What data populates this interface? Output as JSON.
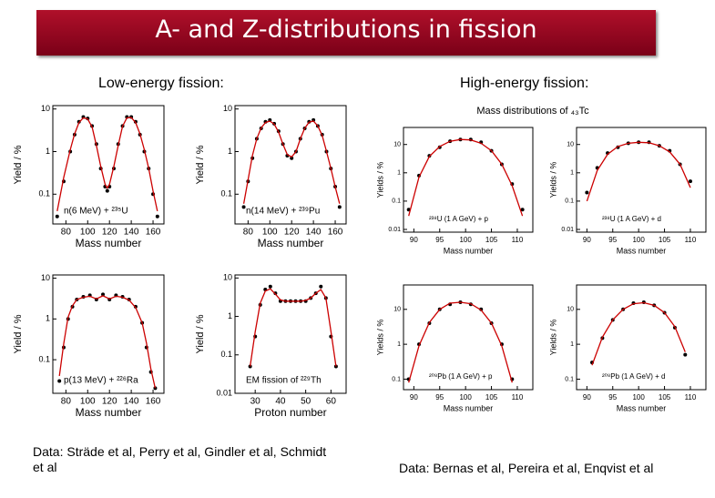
{
  "title": "A- and Z-distributions in fission",
  "left_heading": "Low-energy fission:",
  "right_heading": "High-energy fission:",
  "right_plot_title": "Mass distributions of ₄₃Tc",
  "left_caption": "Data: Sträde et al, Perry et al, Gindler et al, Schmidt et al",
  "right_caption": "Data: Bernas et al, Pereira et al, Enqvist et al",
  "chart_data": [
    {
      "type": "scatter",
      "xlabel": "Mass number",
      "ylabel": "Yield / %",
      "annotation": "n(6 MeV) + ²³⁵U",
      "log_y": true,
      "xlim": [
        68,
        170
      ],
      "ylim": [
        0.02,
        12
      ],
      "xticks": [
        80,
        100,
        120,
        140,
        160
      ],
      "yticks": [
        10,
        1,
        0.1
      ],
      "x": [
        72,
        78,
        84,
        88,
        92,
        96,
        100,
        104,
        108,
        112,
        116,
        118,
        120,
        124,
        128,
        132,
        136,
        140,
        144,
        148,
        152,
        156,
        160,
        164
      ],
      "series": [
        {
          "mode": "markers",
          "color": "#000000",
          "values": [
            0.03,
            0.2,
            1,
            2.5,
            5,
            6.5,
            6,
            4,
            1.5,
            0.4,
            0.15,
            0.12,
            0.15,
            0.4,
            1.5,
            4,
            6.5,
            6.5,
            5,
            2.5,
            1,
            0.4,
            0.1,
            0.03
          ]
        },
        {
          "mode": "line",
          "color": "#cc0000",
          "values": [
            0.04,
            0.25,
            1.1,
            2.6,
            4.8,
            6.2,
            5.8,
            3.8,
            1.4,
            0.45,
            0.17,
            0.14,
            0.17,
            0.45,
            1.4,
            3.9,
            6.2,
            6.3,
            4.8,
            2.6,
            1.1,
            0.4,
            0.12,
            0.04
          ]
        }
      ]
    },
    {
      "type": "scatter",
      "xlabel": "Mass number",
      "ylabel": "Yield / %",
      "annotation": "n(14 MeV) + ²³⁹Pu",
      "log_y": true,
      "xlim": [
        68,
        170
      ],
      "ylim": [
        0.02,
        12
      ],
      "xticks": [
        80,
        100,
        120,
        140,
        160
      ],
      "yticks": [
        10,
        1,
        0.1
      ],
      "x": [
        76,
        80,
        84,
        88,
        92,
        96,
        100,
        104,
        108,
        112,
        116,
        120,
        124,
        128,
        132,
        136,
        140,
        144,
        148,
        152,
        156,
        160,
        164
      ],
      "series": [
        {
          "mode": "markers",
          "color": "#000000",
          "values": [
            0.05,
            0.2,
            0.7,
            2,
            3.5,
            5,
            5.5,
            4.5,
            3,
            1.5,
            0.8,
            0.7,
            1,
            2,
            3.5,
            5,
            5.5,
            4,
            2.5,
            1,
            0.4,
            0.15,
            0.05
          ]
        },
        {
          "mode": "line",
          "color": "#cc0000",
          "values": [
            0.06,
            0.22,
            0.8,
            2,
            3.6,
            4.8,
            5.2,
            4.4,
            2.9,
            1.5,
            0.85,
            0.75,
            1,
            2,
            3.5,
            4.9,
            5.2,
            4,
            2.4,
            1,
            0.4,
            0.15,
            0.06
          ]
        }
      ]
    },
    {
      "type": "scatter",
      "xlabel": "Mass number",
      "ylabel": "Yield / %",
      "annotation": "p(13 MeV) + ²²⁶Ra",
      "log_y": true,
      "xlim": [
        68,
        170
      ],
      "ylim": [
        0.015,
        12
      ],
      "xticks": [
        80,
        100,
        120,
        140,
        160
      ],
      "yticks": [
        10,
        1,
        0.1
      ],
      "x": [
        74,
        78,
        82,
        86,
        90,
        96,
        102,
        108,
        114,
        120,
        126,
        132,
        138,
        144,
        150,
        154,
        158,
        162
      ],
      "series": [
        {
          "mode": "markers",
          "color": "#000000",
          "values": [
            0.03,
            0.2,
            1,
            2,
            3,
            3.5,
            3.8,
            3,
            4,
            3,
            3.8,
            3.5,
            3,
            2,
            0.8,
            0.2,
            0.05,
            0.02
          ]
        },
        {
          "mode": "line",
          "color": "#cc0000",
          "values": [
            0.04,
            0.25,
            1.1,
            2.1,
            3,
            3.4,
            3.6,
            3.1,
            3.7,
            3.1,
            3.6,
            3.4,
            2.9,
            1.9,
            0.8,
            0.25,
            0.06,
            0.02
          ]
        }
      ]
    },
    {
      "type": "scatter",
      "xlabel": "Proton number",
      "ylabel": "Yield / %",
      "annotation": "EM fission of ²²⁹Th",
      "log_y": true,
      "xlim": [
        22,
        66
      ],
      "ylim": [
        0.01,
        12
      ],
      "xticks": [
        30,
        40,
        50,
        60
      ],
      "yticks": [
        10,
        1,
        0.1,
        0.01
      ],
      "x": [
        28,
        30,
        32,
        34,
        36,
        38,
        40,
        42,
        44,
        46,
        48,
        50,
        52,
        54,
        56,
        58,
        60,
        62
      ],
      "series": [
        {
          "mode": "markers",
          "color": "#000000",
          "values": [
            0.05,
            0.3,
            2,
            5,
            6,
            4,
            2.5,
            2.5,
            2.5,
            2.5,
            2.5,
            2.5,
            3,
            4,
            6,
            3,
            0.3,
            0.05
          ]
        },
        {
          "mode": "line",
          "color": "#cc0000",
          "values": [
            0.05,
            0.4,
            2.2,
            4.6,
            5.2,
            3.8,
            2.7,
            2.5,
            2.5,
            2.5,
            2.5,
            2.6,
            3,
            4,
            5,
            3,
            0.4,
            0.05
          ]
        }
      ]
    },
    {
      "type": "scatter",
      "xlabel": "Mass number",
      "ylabel": "Yields / %",
      "annotation": "²³⁸U (1 A GeV) + p",
      "log_y": true,
      "xlim": [
        88,
        113
      ],
      "ylim": [
        0.008,
        40
      ],
      "xticks": [
        90,
        95,
        100,
        105,
        110
      ],
      "yticks": [
        10,
        1,
        0.1,
        0.01
      ],
      "x": [
        89,
        91,
        93,
        95,
        97,
        99,
        101,
        103,
        105,
        107,
        109,
        111
      ],
      "series": [
        {
          "mode": "markers",
          "color": "#000000",
          "values": [
            0.05,
            0.8,
            4,
            8,
            13,
            15,
            15,
            12,
            6,
            2,
            0.4,
            0.05
          ]
        },
        {
          "mode": "line",
          "color": "#cc0000",
          "values": [
            0.03,
            0.7,
            3.8,
            8.5,
            13,
            15,
            14.5,
            11,
            6,
            2,
            0.35,
            0.03
          ]
        }
      ]
    },
    {
      "type": "scatter",
      "xlabel": "Mass number",
      "ylabel": "Yields / %",
      "annotation": "²³⁸U (1 A GeV) + d",
      "log_y": true,
      "xlim": [
        88,
        113
      ],
      "ylim": [
        0.008,
        40
      ],
      "xticks": [
        90,
        95,
        100,
        105,
        110
      ],
      "yticks": [
        10,
        1,
        0.1,
        0.01
      ],
      "x": [
        90,
        92,
        94,
        96,
        98,
        100,
        102,
        104,
        106,
        108,
        110
      ],
      "series": [
        {
          "mode": "markers",
          "color": "#000000",
          "values": [
            0.2,
            1.5,
            5,
            8,
            11,
            12,
            12,
            9,
            6,
            2,
            0.5
          ]
        },
        {
          "mode": "line",
          "color": "#cc0000",
          "values": [
            0.1,
            1.2,
            4.5,
            8.5,
            11,
            12,
            11.5,
            9,
            5.5,
            2,
            0.3
          ]
        }
      ]
    },
    {
      "type": "scatter",
      "xlabel": "Mass number",
      "ylabel": "Yields / %",
      "annotation": "²⁰⁸Pb (1 A GeV) + p",
      "log_y": true,
      "xlim": [
        88,
        113
      ],
      "ylim": [
        0.05,
        50
      ],
      "xticks": [
        90,
        95,
        100,
        105,
        110
      ],
      "yticks": [
        10,
        1,
        0.1
      ],
      "x": [
        89,
        91,
        93,
        95,
        97,
        99,
        101,
        103,
        105,
        107,
        109
      ],
      "series": [
        {
          "mode": "markers",
          "color": "#000000",
          "values": [
            0.1,
            1,
            4,
            10,
            14,
            16,
            14,
            10,
            4,
            1,
            0.1
          ]
        },
        {
          "mode": "line",
          "color": "#cc0000",
          "values": [
            0.08,
            0.9,
            4.2,
            10,
            15,
            16,
            14.5,
            9.5,
            4,
            0.9,
            0.08
          ]
        }
      ]
    },
    {
      "type": "scatter",
      "xlabel": "Mass number",
      "ylabel": "Yields / %",
      "annotation": "²⁰⁸Pb (1 A GeV) + d",
      "log_y": true,
      "xlim": [
        88,
        113
      ],
      "ylim": [
        0.05,
        50
      ],
      "xticks": [
        90,
        95,
        100,
        105,
        110
      ],
      "yticks": [
        10,
        1,
        0.1
      ],
      "x": [
        91,
        93,
        95,
        97,
        99,
        101,
        103,
        105,
        107,
        109
      ],
      "series": [
        {
          "mode": "markers",
          "color": "#000000",
          "values": [
            0.3,
            1.5,
            5,
            10,
            15,
            16,
            13,
            8,
            3,
            0.5
          ]
        },
        {
          "mode": "line",
          "color": "#cc0000",
          "values": [
            0.25,
            1.6,
            5,
            10,
            14.5,
            15.5,
            13,
            8,
            3.2,
            0.6
          ]
        }
      ]
    }
  ]
}
